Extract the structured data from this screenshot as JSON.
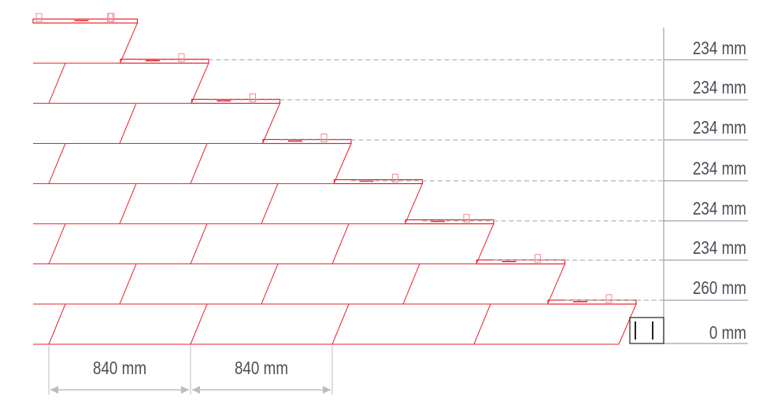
{
  "diagram": {
    "tile_color": "#e8202a",
    "guide_color": "#9aa3ad",
    "row_spacings": [
      "234 mm",
      "234 mm",
      "234 mm",
      "234 mm",
      "234 mm",
      "234 mm",
      "260 mm",
      "0 mm"
    ],
    "tile_widths": [
      "840 mm",
      "840 mm"
    ],
    "row_count": 8
  }
}
